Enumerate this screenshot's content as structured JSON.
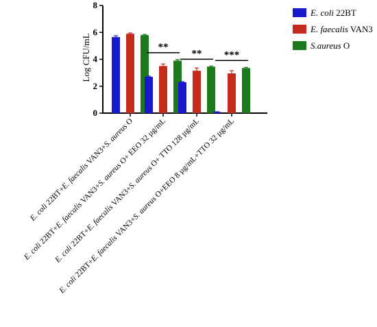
{
  "chart_data": {
    "type": "bar",
    "title": "",
    "xlabel": "",
    "ylabel": "Log CFU/mL",
    "ylim": [
      0,
      8
    ],
    "yticks": [
      0,
      2,
      4,
      6,
      8
    ],
    "grid": false,
    "legend_position": "top-right",
    "categories": [
      "E. coli 22BT+E. faecalis VAN3+S. aureus O",
      "E. coli 22BT+E. faecalis VAN3+S. aureus O+ EEO 32 µg/mL",
      "E. coli 22BT+E. faecalis VAN3+S. aureus O+ TTO 128 µg/mL",
      "E. coli 22BT+E. faecalis VAN3+S. aureus O+EEO 8 µg/mL+TTO 32 µg/mL"
    ],
    "series": [
      {
        "name": "E. coli 22BT",
        "name_italic": "E. coli",
        "name_rest": " 22BT",
        "color": "#1a1acd",
        "values": [
          5.65,
          2.7,
          2.3,
          0.08
        ],
        "errors": [
          0.1,
          0.05,
          0.04,
          0.02
        ]
      },
      {
        "name": "E. faecalis VAN3",
        "name_italic": "E. faecalis",
        "name_rest": " VAN3",
        "color": "#c42b1c",
        "values": [
          5.9,
          3.5,
          3.15,
          2.95
        ],
        "errors": [
          0.06,
          0.15,
          0.2,
          0.2
        ]
      },
      {
        "name": "S.aureus O",
        "name_italic": "S.aureus",
        "name_rest": " O",
        "color": "#1c7a1c",
        "values": [
          5.8,
          3.9,
          3.45,
          3.35
        ],
        "errors": [
          0.05,
          0.08,
          0.05,
          0.05
        ]
      }
    ],
    "annotations": [
      "",
      "**",
      "**",
      "***"
    ],
    "category_labels": [
      {
        "italic1": "E. coli",
        "plain1": " 22BT+",
        "italic2": "E. faecalis",
        "plain2": " VAN3+",
        "italic3": "S. aureus",
        "plain3": " O"
      },
      {
        "italic1": "E. coli",
        "plain1": " 22BT+",
        "italic2": "E. faecalis",
        "plain2": " VAN3+",
        "italic3": "S. aureus",
        "plain3": " O+ EEO 32 µg/mL"
      },
      {
        "italic1": "E. coli",
        "plain1": " 22BT+",
        "italic2": "E. faecalis",
        "plain2": " VAN3+",
        "italic3": "S. aureus",
        "plain3": " O+ TTO 128 µg/mL"
      },
      {
        "italic1": "E. coli",
        "plain1": " 22BT+",
        "italic2": "E. faecalis",
        "plain2": " VAN3+",
        "italic3": "S. aureus",
        "plain3": " O+EEO 8 µg/mL+TTO 32 µg/mL"
      }
    ]
  }
}
